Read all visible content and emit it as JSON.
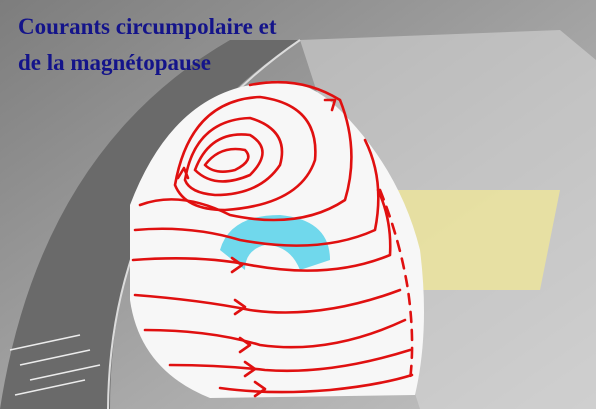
{
  "title": [
    "Courants circumpolaire et",
    "de la magnétopause"
  ]
}
